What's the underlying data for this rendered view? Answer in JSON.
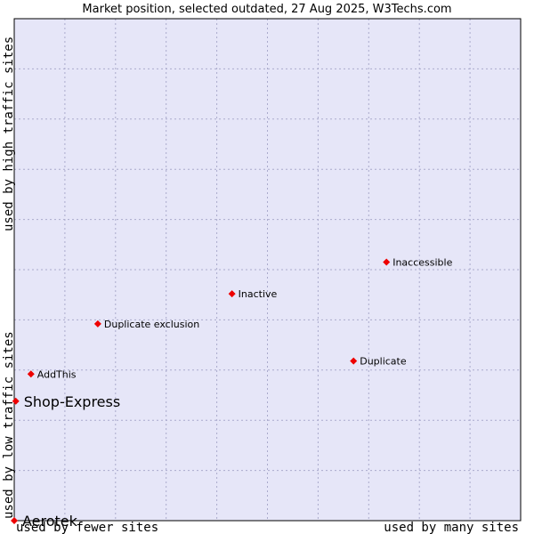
{
  "chart_data": {
    "type": "scatter",
    "title": "Market position, selected outdated, 27 Aug 2025, W3Techs.com",
    "xlabel_low": "used by fewer sites",
    "xlabel_high": "used by many sites",
    "ylabel_low": "used by low traffic sites",
    "ylabel_high": "used by high traffic sites",
    "xlim": [
      0,
      100
    ],
    "ylim": [
      0,
      100
    ],
    "grid": true,
    "colors": {
      "plot_bg": "#e6e6f8",
      "grid": "#aaaacc",
      "point": "#ee0000",
      "border": "#000000"
    },
    "points": [
      {
        "label": "Inaccessible",
        "x": 73.5,
        "y": 51.5,
        "emphasis": false
      },
      {
        "label": "Inactive",
        "x": 43.0,
        "y": 45.2,
        "emphasis": false
      },
      {
        "label": "Duplicate exclusion",
        "x": 16.5,
        "y": 39.2,
        "emphasis": false
      },
      {
        "label": "Duplicate",
        "x": 67.0,
        "y": 31.8,
        "emphasis": false
      },
      {
        "label": "AddThis",
        "x": 3.3,
        "y": 29.2,
        "emphasis": false
      },
      {
        "label": "Shop-Express",
        "x": 0.3,
        "y": 23.8,
        "emphasis": true
      },
      {
        "label": "Aerotek",
        "x": 0.0,
        "y": 0.0,
        "emphasis": true
      }
    ]
  }
}
